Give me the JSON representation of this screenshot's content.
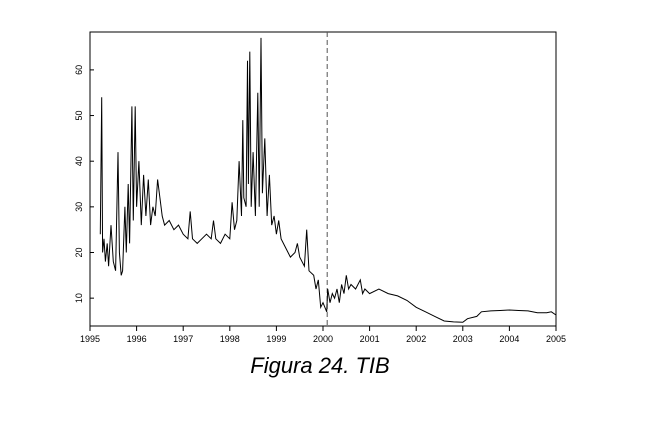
{
  "chart_data": {
    "type": "line",
    "title": "Figura 24. TIB",
    "x": [
      1995.22,
      1995.25,
      1995.27,
      1995.3,
      1995.33,
      1995.37,
      1995.4,
      1995.45,
      1995.5,
      1995.55,
      1995.6,
      1995.63,
      1995.67,
      1995.7,
      1995.75,
      1995.78,
      1995.82,
      1995.85,
      1995.9,
      1995.93,
      1995.97,
      1996.0,
      1996.05,
      1996.1,
      1996.15,
      1996.2,
      1996.25,
      1996.3,
      1996.35,
      1996.4,
      1996.45,
      1996.5,
      1996.55,
      1996.6,
      1996.7,
      1996.8,
      1996.9,
      1997.0,
      1997.1,
      1997.15,
      1997.2,
      1997.3,
      1997.4,
      1997.5,
      1997.6,
      1997.65,
      1997.7,
      1997.8,
      1997.9,
      1998.0,
      1998.05,
      1998.1,
      1998.15,
      1998.2,
      1998.25,
      1998.28,
      1998.3,
      1998.35,
      1998.38,
      1998.4,
      1998.43,
      1998.46,
      1998.5,
      1998.55,
      1998.6,
      1998.63,
      1998.67,
      1998.7,
      1998.75,
      1998.8,
      1998.85,
      1998.9,
      1998.95,
      1999.0,
      1999.05,
      1999.1,
      1999.2,
      1999.3,
      1999.4,
      1999.45,
      1999.5,
      1999.6,
      1999.65,
      1999.7,
      1999.8,
      1999.85,
      1999.9,
      1999.95,
      2000.0,
      2000.08,
      2000.1,
      2000.15,
      2000.2,
      2000.25,
      2000.3,
      2000.35,
      2000.4,
      2000.45,
      2000.5,
      2000.55,
      2000.6,
      2000.7,
      2000.8,
      2000.85,
      2000.9,
      2001.0,
      2001.2,
      2001.4,
      2001.6,
      2001.8,
      2002.0,
      2002.2,
      2002.4,
      2002.6,
      2002.8,
      2003.0,
      2003.1,
      2003.3,
      2003.4,
      2003.6,
      2003.8,
      2004.0,
      2004.2,
      2004.4,
      2004.6,
      2004.8,
      2004.9,
      2005.0
    ],
    "series": [
      {
        "color": "#000000",
        "values": [
          24,
          54,
          20,
          23,
          18,
          22,
          17,
          26,
          18,
          16,
          42,
          20,
          15,
          16,
          30,
          20,
          35,
          22,
          52,
          27,
          52,
          30,
          40,
          26,
          37,
          28,
          36,
          26,
          30,
          28,
          36,
          32,
          28,
          26,
          27,
          25,
          26,
          24,
          23,
          29,
          23,
          22,
          23,
          24,
          23,
          27,
          23,
          22,
          24,
          23,
          31,
          25,
          27,
          40,
          28,
          49,
          32,
          30,
          62,
          35,
          64,
          30,
          42,
          28,
          55,
          30,
          67,
          33,
          45,
          28,
          37,
          26,
          28,
          24,
          27,
          23,
          21,
          19,
          20,
          22,
          19,
          17,
          25,
          16,
          15,
          12,
          14,
          8,
          9,
          7,
          12,
          9,
          11,
          10,
          12,
          9,
          13,
          11,
          15,
          12,
          13,
          12,
          14,
          11,
          12,
          11,
          12,
          11,
          10.5,
          9.5,
          8,
          7,
          6,
          5,
          4.8,
          4.7,
          5.5,
          6,
          7,
          7.2,
          7.3,
          7.4,
          7.3,
          7.2,
          6.8,
          6.8,
          7,
          6.3
        ]
      }
    ],
    "xlim": [
      1995,
      2005
    ],
    "xticks": [
      1995,
      1996,
      1997,
      1998,
      1999,
      2000,
      2001,
      2002,
      2003,
      2004,
      2005
    ],
    "ylim": [
      3.9,
      68.3
    ],
    "yticks": [
      10,
      20,
      30,
      40,
      50,
      60
    ],
    "reference_line_x": 2000.09
  }
}
